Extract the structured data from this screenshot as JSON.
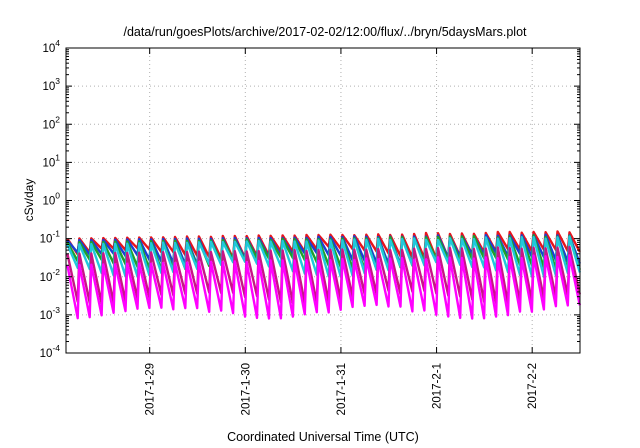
{
  "chart_data": {
    "type": "line",
    "title": "/data/run/goesPlots/archive/2017-02-02/12:00/flux/../bryn/5daysMars.plot",
    "xlabel": "Coordinated Universal Time (UTC)",
    "ylabel": "cSv/day",
    "yscale": "log",
    "ylim": [
      0.0001,
      10000
    ],
    "xlim": [
      "2017-01-28 03:00",
      "2017-02-02 12:00"
    ],
    "grid": true,
    "y_ticks": [
      {
        "base": "10",
        "exp": "4"
      },
      {
        "base": "10",
        "exp": "3"
      },
      {
        "base": "10",
        "exp": "2"
      },
      {
        "base": "10",
        "exp": "1"
      },
      {
        "base": "10",
        "exp": "0"
      },
      {
        "base": "10",
        "exp": "-1"
      },
      {
        "base": "10",
        "exp": "-2"
      },
      {
        "base": "10",
        "exp": "-3"
      },
      {
        "base": "10",
        "exp": "-4"
      }
    ],
    "x_ticks": [
      "2017-1-29",
      "2017-1-30",
      "2017-1-31",
      "2017-2-1",
      "2017-2-2"
    ],
    "cycle_hours": 3,
    "series": [
      {
        "color": "#e8141b",
        "peak": [
          0.1,
          0.15
        ],
        "trough": [
          0.03,
          0.055
        ]
      },
      {
        "color": "#1a3fd6",
        "peak": [
          0.09,
          0.13
        ],
        "trough": [
          0.02,
          0.04
        ]
      },
      {
        "color": "#1f9f2a",
        "peak": [
          0.08,
          0.12
        ],
        "trough": [
          0.015,
          0.03
        ]
      },
      {
        "color": "#20c8dc",
        "peak": [
          0.07,
          0.11
        ],
        "trough": [
          0.01,
          0.022
        ]
      },
      {
        "color": "#c71585",
        "peak": [
          0.04,
          0.06
        ],
        "trough": [
          0.002,
          0.004
        ]
      },
      {
        "color": "#ff00ff",
        "peak": [
          0.02,
          0.035
        ],
        "trough": [
          0.0008,
          0.0016
        ]
      }
    ]
  }
}
